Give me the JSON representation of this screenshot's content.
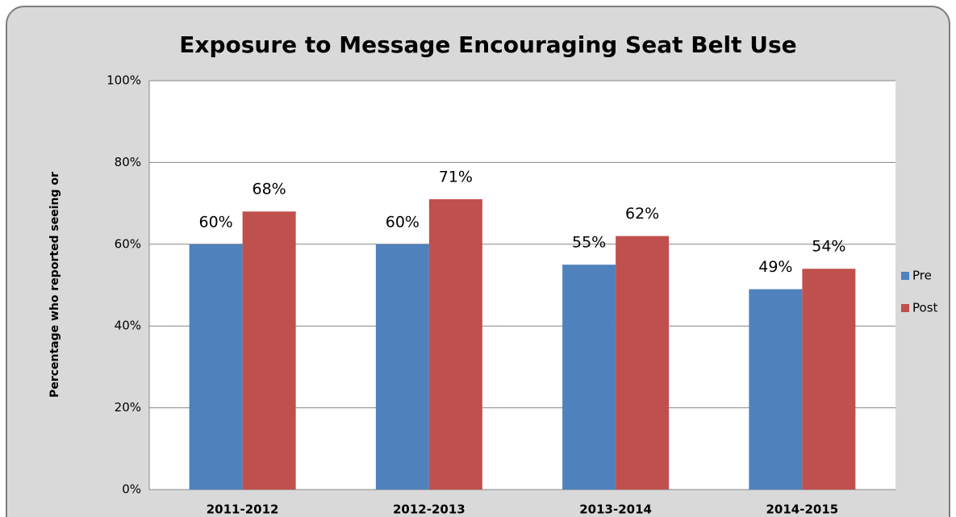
{
  "chart_data": {
    "type": "bar",
    "title": "Exposure to Message Encouraging Seat Belt Use",
    "y_label": "Percentage who reported seeing or",
    "categories": [
      "2011-2012",
      "2012-2013",
      "2013-2014",
      "2014-2015"
    ],
    "series": [
      {
        "name": "Pre",
        "color": "#4f81bd",
        "values": [
          60,
          60,
          55,
          49
        ],
        "value_labels": [
          "60%",
          "60%",
          "55%",
          "49%"
        ]
      },
      {
        "name": "Post",
        "color": "#c0504d",
        "values": [
          68,
          71,
          62,
          54
        ],
        "value_labels": [
          "68%",
          "71%",
          "62%",
          "54%"
        ]
      }
    ],
    "ylim": [
      0,
      100
    ],
    "yticks": [
      {
        "value": 0,
        "label": "0%"
      },
      {
        "value": 20,
        "label": "20%"
      },
      {
        "value": 40,
        "label": "40%"
      },
      {
        "value": 60,
        "label": "60%"
      },
      {
        "value": 80,
        "label": "80%"
      },
      {
        "value": 100,
        "label": "100%"
      }
    ],
    "grid": true,
    "legend": "right"
  }
}
